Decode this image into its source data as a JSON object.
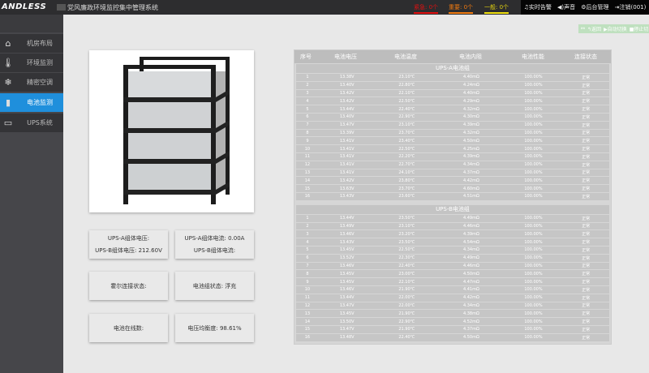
{
  "header": {
    "logo": "ANDLESS",
    "title": "党风廉政环境监控集中管理系统",
    "alarms": [
      {
        "label": "紧急: 0个",
        "color": "#e01010"
      },
      {
        "label": "重要: 0个",
        "color": "#f07a10"
      },
      {
        "label": "一般: 0个",
        "color": "#f0e010"
      }
    ],
    "actions": [
      "♫实时告警",
      "◀)声音",
      "⚙后台管理",
      "⇥注销(001)"
    ]
  },
  "sidebar": {
    "items": [
      {
        "label": "机房布局",
        "icon": "home-icon"
      },
      {
        "label": "环境监测",
        "icon": "thermometer-icon"
      },
      {
        "label": "精密空调",
        "icon": "snowflake-icon"
      },
      {
        "label": "电池监测",
        "icon": "battery-icon",
        "active": true
      },
      {
        "label": "UPS系统",
        "icon": "ups-battery-icon"
      }
    ]
  },
  "toolbar": {
    "back": "↰返回",
    "auto": "▶自动切换",
    "stop": "■停止切"
  },
  "info": {
    "a_voltage": "UPS-A组体电压:",
    "b_voltage": "UPS-B组体电压:   212.60V",
    "a_current": "UPS-A组体电流:   0.00A",
    "b_current": "UPS-B组体电流:",
    "hall": "霍尔连接状态:",
    "group_state": "电池组状态:   浮充",
    "online": "电池在线数:",
    "balance": "电压均衡度:   98.61%"
  },
  "table": {
    "headers": [
      "序号",
      "电池电压",
      "电池温度",
      "电池内阻",
      "电池性能",
      "连接状态"
    ],
    "groups": [
      {
        "name": "UPS-A电池组",
        "rows": [
          [
            "1",
            "13.38V",
            "23.10℃",
            "4.40mΩ",
            "100.00%",
            "正常"
          ],
          [
            "2",
            "13.40V",
            "22.80℃",
            "4.24mΩ",
            "100.00%",
            "正常"
          ],
          [
            "3",
            "13.42V",
            "22.10℃",
            "4.40mΩ",
            "100.00%",
            "正常"
          ],
          [
            "4",
            "13.42V",
            "22.50℃",
            "4.29mΩ",
            "100.00%",
            "正常"
          ],
          [
            "5",
            "13.44V",
            "22.40℃",
            "4.32mΩ",
            "100.00%",
            "正常"
          ],
          [
            "6",
            "13.40V",
            "22.90℃",
            "4.30mΩ",
            "100.00%",
            "正常"
          ],
          [
            "7",
            "13.47V",
            "23.10℃",
            "4.39mΩ",
            "100.00%",
            "正常"
          ],
          [
            "8",
            "13.39V",
            "23.70℃",
            "4.32mΩ",
            "100.00%",
            "正常"
          ],
          [
            "9",
            "13.41V",
            "23.40℃",
            "4.50mΩ",
            "100.00%",
            "正常"
          ],
          [
            "10",
            "13.41V",
            "22.50℃",
            "4.25mΩ",
            "100.00%",
            "正常"
          ],
          [
            "11",
            "13.41V",
            "22.20℃",
            "4.39mΩ",
            "100.00%",
            "正常"
          ],
          [
            "12",
            "13.41V",
            "22.70℃",
            "4.34mΩ",
            "100.00%",
            "正常"
          ],
          [
            "13",
            "13.41V",
            "24.10℃",
            "4.37mΩ",
            "100.00%",
            "正常"
          ],
          [
            "14",
            "13.42V",
            "23.80℃",
            "4.42mΩ",
            "100.00%",
            "正常"
          ],
          [
            "15",
            "13.63V",
            "23.70℃",
            "4.60mΩ",
            "100.00%",
            "正常"
          ],
          [
            "16",
            "13.43V",
            "23.60℃",
            "4.51mΩ",
            "100.00%",
            "正常"
          ]
        ]
      },
      {
        "name": "UPS-B电池组",
        "rows": [
          [
            "1",
            "13.44V",
            "23.50℃",
            "4.49mΩ",
            "100.00%",
            "正常"
          ],
          [
            "2",
            "13.49V",
            "23.10℃",
            "4.46mΩ",
            "100.00%",
            "正常"
          ],
          [
            "3",
            "13.46V",
            "23.20℃",
            "4.39mΩ",
            "100.00%",
            "正常"
          ],
          [
            "4",
            "13.43V",
            "23.50℃",
            "4.54mΩ",
            "100.00%",
            "正常"
          ],
          [
            "5",
            "13.45V",
            "22.50℃",
            "4.34mΩ",
            "100.00%",
            "正常"
          ],
          [
            "6",
            "13.52V",
            "22.30℃",
            "4.49mΩ",
            "100.00%",
            "正常"
          ],
          [
            "7",
            "13.46V",
            "22.40℃",
            "4.46mΩ",
            "100.00%",
            "正常"
          ],
          [
            "8",
            "13.45V",
            "23.00℃",
            "4.50mΩ",
            "100.00%",
            "正常"
          ],
          [
            "9",
            "13.45V",
            "22.10℃",
            "4.47mΩ",
            "100.00%",
            "正常"
          ],
          [
            "10",
            "13.46V",
            "21.90℃",
            "4.41mΩ",
            "100.00%",
            "正常"
          ],
          [
            "11",
            "13.44V",
            "22.00℃",
            "4.42mΩ",
            "100.00%",
            "正常"
          ],
          [
            "12",
            "13.47V",
            "22.00℃",
            "4.34mΩ",
            "100.00%",
            "正常"
          ],
          [
            "13",
            "13.45V",
            "21.90℃",
            "4.38mΩ",
            "100.00%",
            "正常"
          ],
          [
            "14",
            "13.50V",
            "22.90℃",
            "4.52mΩ",
            "100.00%",
            "正常"
          ],
          [
            "15",
            "13.47V",
            "21.90℃",
            "4.37mΩ",
            "100.00%",
            "正常"
          ],
          [
            "16",
            "13.48V",
            "22.40℃",
            "4.50mΩ",
            "100.00%",
            "正常"
          ]
        ]
      }
    ]
  }
}
